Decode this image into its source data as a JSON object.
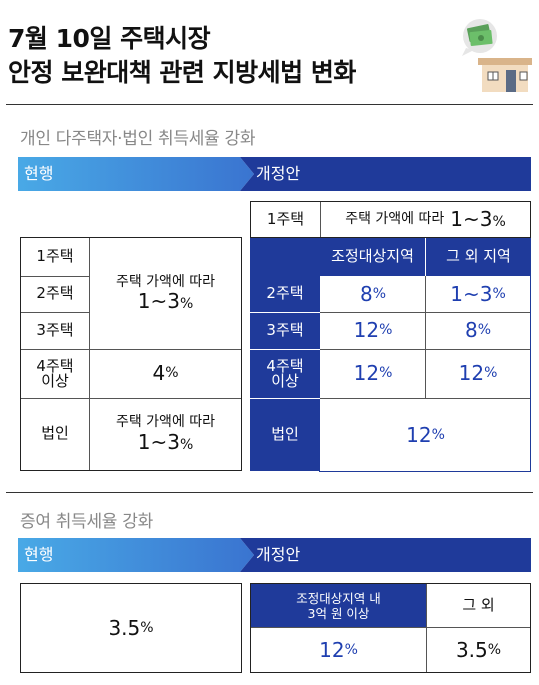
{
  "title": {
    "line1": "7월 10일 주택시장",
    "line2": "안정 보완대책 관련 지방세법 변화"
  },
  "sections": {
    "acquisition": {
      "heading": "개인 다주택자·법인 취득세율 강화",
      "current_label": "현행",
      "proposed_label": "개정안",
      "current": {
        "rows": [
          "1주택",
          "2주택",
          "3주택",
          "4주택\n이상",
          "법인"
        ],
        "house_rate_text": "주택 가액에 따라",
        "house_rate_value": "1~3",
        "four_plus_value": "4",
        "corp_rate_text": "주택 가액에 따라",
        "corp_rate_value": "1~3",
        "unit": "%"
      },
      "proposed": {
        "first_home_label": "1주택",
        "first_home_text": "주택 가액에 따라",
        "first_home_value": "1~3",
        "col_regulated": "조정대상지역",
        "col_other": "그 외 지역",
        "rows": [
          {
            "label": "2주택",
            "regulated": "8",
            "other": "1~3"
          },
          {
            "label": "3주택",
            "regulated": "12",
            "other": "8"
          },
          {
            "label": "4주택\n이상",
            "regulated": "12",
            "other": "12"
          }
        ],
        "corp_label": "법인",
        "corp_value": "12",
        "unit": "%"
      }
    },
    "gift": {
      "heading": "증여 취득세율 강화",
      "current_label": "현행",
      "proposed_label": "개정안",
      "current_value": "3.5",
      "proposed_col1": "조정대상지역 내\n3억 원 이상",
      "proposed_col2": "그 외",
      "proposed_val1": "12",
      "proposed_val2": "3.5",
      "unit": "%"
    }
  },
  "colors": {
    "navy": "#1f3a9a",
    "banner_light": "#49a9e6",
    "banner_dark": "#1f3a9a",
    "accent_blue": "#1f3fb0"
  }
}
